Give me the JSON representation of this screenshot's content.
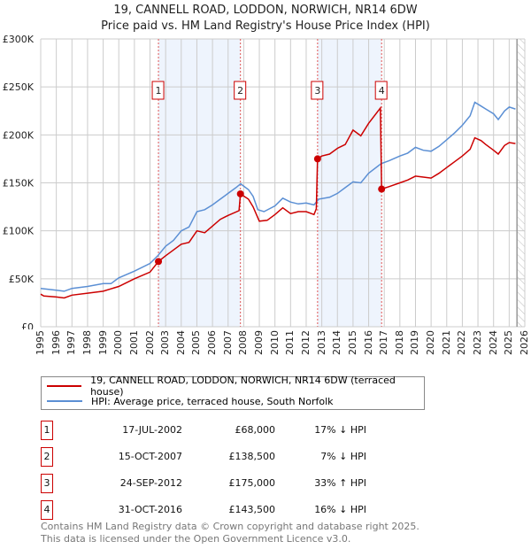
{
  "title": "19, CANNELL ROAD, LODDON, NORWICH, NR14 6DW",
  "subtitle": "Price paid vs. HM Land Registry's House Price Index (HPI)",
  "colors": {
    "property": "#cc0000",
    "hpi": "#5b8fd4",
    "shade": "#eef4fd"
  },
  "chart_data": {
    "type": "line",
    "title": "19, CANNELL ROAD, LODDON, NORWICH, NR14 6DW",
    "xlim": [
      1995,
      2026
    ],
    "ylim": [
      0,
      300000
    ],
    "yticks": [
      {
        "v": 0,
        "label": "£0"
      },
      {
        "v": 50000,
        "label": "£50K"
      },
      {
        "v": 100000,
        "label": "£100K"
      },
      {
        "v": 150000,
        "label": "£150K"
      },
      {
        "v": 200000,
        "label": "£200K"
      },
      {
        "v": 250000,
        "label": "£250K"
      },
      {
        "v": 300000,
        "label": "£300K"
      }
    ],
    "xticks": [
      "1995",
      "1996",
      "1997",
      "1998",
      "1999",
      "2000",
      "2001",
      "2002",
      "2003",
      "2004",
      "2005",
      "2006",
      "2007",
      "2008",
      "2009",
      "2010",
      "2011",
      "2012",
      "2013",
      "2014",
      "2015",
      "2016",
      "2017",
      "2018",
      "2019",
      "2020",
      "2021",
      "2022",
      "2023",
      "2024",
      "2025",
      "2026"
    ],
    "shaded_ranges": [
      [
        2002.54,
        2007.79
      ],
      [
        2012.73,
        2016.83
      ]
    ],
    "forecast_from": 2025.5,
    "series": [
      {
        "name": "19, CANNELL ROAD, LODDON, NORWICH, NR14 6DW (terraced house)",
        "color": "#cc0000",
        "points": [
          [
            1995,
            34
          ],
          [
            1995.2,
            32
          ],
          [
            1996,
            31
          ],
          [
            1996.5,
            30
          ],
          [
            1997,
            33
          ],
          [
            1998,
            35
          ],
          [
            1999,
            37
          ],
          [
            2000,
            42
          ],
          [
            2001,
            50
          ],
          [
            2002,
            57
          ],
          [
            2002.54,
            68
          ],
          [
            2003,
            74
          ],
          [
            2003.5,
            80
          ],
          [
            2004,
            86
          ],
          [
            2004.5,
            88
          ],
          [
            2005,
            100
          ],
          [
            2005.5,
            98
          ],
          [
            2006,
            105
          ],
          [
            2006.5,
            112
          ],
          [
            2007,
            116
          ],
          [
            2007.7,
            121
          ],
          [
            2007.79,
            138.5
          ],
          [
            2008.3,
            133
          ],
          [
            2008.6,
            125
          ],
          [
            2009,
            110
          ],
          [
            2009.5,
            111
          ],
          [
            2010,
            117
          ],
          [
            2010.5,
            124
          ],
          [
            2011,
            118
          ],
          [
            2011.5,
            120
          ],
          [
            2012,
            120
          ],
          [
            2012.5,
            117
          ],
          [
            2012.65,
            123
          ],
          [
            2012.73,
            175
          ],
          [
            2013,
            178
          ],
          [
            2013.5,
            180
          ],
          [
            2014,
            186
          ],
          [
            2014.5,
            190
          ],
          [
            2015,
            205
          ],
          [
            2015.5,
            199
          ],
          [
            2016,
            212
          ],
          [
            2016.75,
            228
          ],
          [
            2016.83,
            143.5
          ],
          [
            2017.3,
            146
          ],
          [
            2018,
            150
          ],
          [
            2018.5,
            153
          ],
          [
            2019,
            157
          ],
          [
            2019.5,
            156
          ],
          [
            2020,
            155
          ],
          [
            2020.5,
            160
          ],
          [
            2021,
            166
          ],
          [
            2021.5,
            172
          ],
          [
            2022,
            178
          ],
          [
            2022.5,
            185
          ],
          [
            2022.8,
            197
          ],
          [
            2023.2,
            194
          ],
          [
            2023.5,
            190
          ],
          [
            2024,
            184
          ],
          [
            2024.3,
            180
          ],
          [
            2024.7,
            189
          ],
          [
            2025,
            192
          ],
          [
            2025.4,
            191
          ]
        ]
      },
      {
        "name": "HPI: Average price, terraced house, South Norfolk",
        "color": "#5b8fd4",
        "points": [
          [
            1995,
            40
          ],
          [
            1996,
            38
          ],
          [
            1996.5,
            37
          ],
          [
            1997,
            40
          ],
          [
            1998,
            42
          ],
          [
            1999,
            45
          ],
          [
            1999.5,
            45
          ],
          [
            2000,
            51
          ],
          [
            2001,
            58
          ],
          [
            2002,
            66
          ],
          [
            2002.5,
            74
          ],
          [
            2003,
            84
          ],
          [
            2003.5,
            90
          ],
          [
            2004,
            100
          ],
          [
            2004.5,
            104
          ],
          [
            2005,
            120
          ],
          [
            2005.5,
            122
          ],
          [
            2006,
            127
          ],
          [
            2006.5,
            133
          ],
          [
            2007,
            139
          ],
          [
            2007.5,
            145
          ],
          [
            2007.8,
            149
          ],
          [
            2008.3,
            143
          ],
          [
            2008.6,
            136
          ],
          [
            2008.9,
            122
          ],
          [
            2009.3,
            120
          ],
          [
            2010,
            126
          ],
          [
            2010.5,
            134
          ],
          [
            2011,
            130
          ],
          [
            2011.5,
            128
          ],
          [
            2012,
            129
          ],
          [
            2012.5,
            127
          ],
          [
            2012.8,
            133
          ],
          [
            2013.5,
            135
          ],
          [
            2014,
            139
          ],
          [
            2014.5,
            145
          ],
          [
            2015,
            151
          ],
          [
            2015.5,
            150
          ],
          [
            2016,
            160
          ],
          [
            2016.8,
            170
          ],
          [
            2017.3,
            173
          ],
          [
            2018,
            178
          ],
          [
            2018.5,
            181
          ],
          [
            2019,
            187
          ],
          [
            2019.5,
            184
          ],
          [
            2020,
            183
          ],
          [
            2020.5,
            188
          ],
          [
            2021,
            195
          ],
          [
            2021.5,
            202
          ],
          [
            2022,
            210
          ],
          [
            2022.5,
            220
          ],
          [
            2022.8,
            234
          ],
          [
            2023.2,
            230
          ],
          [
            2023.5,
            227
          ],
          [
            2024,
            222
          ],
          [
            2024.3,
            216
          ],
          [
            2024.7,
            225
          ],
          [
            2025,
            229
          ],
          [
            2025.4,
            227
          ]
        ]
      }
    ],
    "y_units": "thousands GBP",
    "sales": [
      {
        "n": "1",
        "x": 2002.54,
        "y": 68
      },
      {
        "n": "2",
        "x": 2007.79,
        "y": 138.5
      },
      {
        "n": "3",
        "x": 2012.73,
        "y": 175
      },
      {
        "n": "4",
        "x": 2016.83,
        "y": 143.5
      }
    ]
  },
  "legend": {
    "property": "19, CANNELL ROAD, LODDON, NORWICH, NR14 6DW (terraced house)",
    "hpi": "HPI: Average price, terraced house, South Norfolk"
  },
  "transactions": [
    {
      "n": "1",
      "date": "17-JUL-2002",
      "price": "£68,000",
      "hpi": "17% ↓ HPI"
    },
    {
      "n": "2",
      "date": "15-OCT-2007",
      "price": "£138,500",
      "hpi": "7% ↓ HPI"
    },
    {
      "n": "3",
      "date": "24-SEP-2012",
      "price": "£175,000",
      "hpi": "33% ↑ HPI"
    },
    {
      "n": "4",
      "date": "31-OCT-2016",
      "price": "£143,500",
      "hpi": "16% ↓ HPI"
    }
  ],
  "footer": [
    "Contains HM Land Registry data © Crown copyright and database right 2025.",
    "This data is licensed under the Open Government Licence v3.0."
  ]
}
